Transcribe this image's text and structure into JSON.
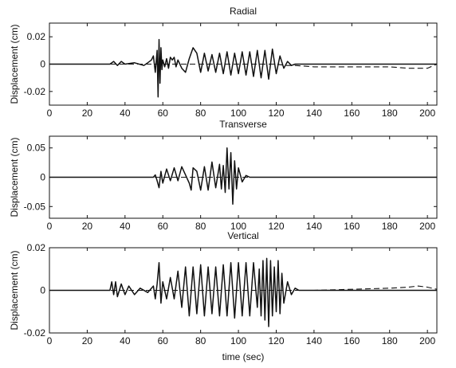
{
  "chart_data": [
    {
      "type": "line",
      "title": "Radial",
      "ylabel": "Displacement (cm)",
      "xlabel": "",
      "xlim": [
        0,
        205
      ],
      "ylim": [
        -0.03,
        0.03
      ],
      "x_ticks": [
        0,
        20,
        40,
        60,
        80,
        100,
        120,
        140,
        160,
        180,
        200
      ],
      "y_ticks": [
        -0.02,
        0,
        0.02
      ],
      "y_tick_labels": [
        "-0.02",
        "0",
        "0.02"
      ],
      "grid": false,
      "series": [
        {
          "style": "solid",
          "x": [
            0,
            32,
            34,
            36,
            38,
            40,
            45,
            50,
            52,
            54,
            55,
            56,
            57,
            57.5,
            58,
            58.5,
            59,
            59.5,
            60,
            61,
            62,
            63,
            64,
            65,
            66,
            67,
            68,
            70,
            72,
            74,
            76,
            78,
            80,
            82,
            84,
            86,
            88,
            90,
            92,
            94,
            96,
            98,
            100,
            102,
            104,
            106,
            108,
            110,
            112,
            114,
            116,
            118,
            120,
            122,
            124,
            126,
            128,
            130,
            205
          ],
          "y": [
            0,
            0,
            0.002,
            -0.001,
            0.002,
            0,
            0.001,
            -0.001,
            0.001,
            0.003,
            0.006,
            -0.006,
            0.01,
            -0.024,
            0.018,
            -0.014,
            0.012,
            -0.004,
            0.003,
            -0.002,
            0.004,
            -0.003,
            0.005,
            0.003,
            0.005,
            -0.002,
            0.003,
            -0.003,
            -0.006,
            0.004,
            0.012,
            0.008,
            -0.006,
            0.008,
            -0.005,
            0.007,
            -0.006,
            0.008,
            -0.007,
            0.009,
            -0.008,
            0.008,
            -0.007,
            0.009,
            -0.008,
            0.009,
            -0.009,
            0.01,
            -0.01,
            0.01,
            -0.011,
            0.011,
            -0.007,
            0.006,
            -0.003,
            0.002,
            -0.001,
            0,
            0
          ]
        },
        {
          "style": "dashed",
          "x": [
            0,
            120,
            125,
            130,
            140,
            160,
            180,
            190,
            195,
            200,
            205
          ],
          "y": [
            0,
            0,
            -0.001,
            -0.001,
            -0.002,
            -0.002,
            -0.002,
            -0.003,
            -0.003,
            -0.003,
            0
          ]
        }
      ]
    },
    {
      "type": "line",
      "title": "Transverse",
      "ylabel": "Displacement (cm)",
      "xlabel": "",
      "xlim": [
        0,
        205
      ],
      "ylim": [
        -0.07,
        0.07
      ],
      "x_ticks": [
        0,
        20,
        40,
        60,
        80,
        100,
        120,
        140,
        160,
        180,
        200
      ],
      "y_ticks": [
        -0.05,
        0,
        0.05
      ],
      "y_tick_labels": [
        "-0.05",
        "0",
        "0.05"
      ],
      "grid": false,
      "series": [
        {
          "style": "solid",
          "x": [
            0,
            55,
            56,
            57,
            58,
            59,
            60,
            62,
            64,
            66,
            68,
            70,
            72,
            74,
            75,
            76,
            78,
            80,
            82,
            84,
            86,
            88,
            90,
            91,
            92,
            93,
            94,
            95,
            96,
            97,
            98,
            99,
            100,
            102,
            104,
            106,
            205
          ],
          "y": [
            0,
            0,
            0.004,
            -0.006,
            -0.018,
            0.01,
            -0.01,
            0.014,
            -0.006,
            0.016,
            -0.006,
            0.018,
            0.004,
            -0.01,
            -0.022,
            0.016,
            0.01,
            -0.022,
            0.018,
            -0.022,
            0.026,
            -0.018,
            0.022,
            -0.02,
            0.02,
            -0.026,
            0.05,
            -0.02,
            0.042,
            -0.046,
            0.028,
            -0.02,
            0.016,
            -0.008,
            0.003,
            0,
            0
          ]
        },
        {
          "style": "dashed",
          "x": [
            0,
            100,
            205
          ],
          "y": [
            0,
            0,
            0
          ]
        }
      ]
    },
    {
      "type": "line",
      "title": "Vertical",
      "ylabel": "Displacement (cm)",
      "xlabel": "time (sec)",
      "xlim": [
        0,
        205
      ],
      "ylim": [
        -0.02,
        0.02
      ],
      "x_ticks": [
        0,
        20,
        40,
        60,
        80,
        100,
        120,
        140,
        160,
        180,
        200
      ],
      "y_ticks": [
        -0.02,
        0,
        0.02
      ],
      "y_tick_labels": [
        "-0.02",
        "0",
        "0.02"
      ],
      "grid": false,
      "series": [
        {
          "style": "solid",
          "x": [
            0,
            32,
            33,
            34,
            35,
            36,
            38,
            40,
            42,
            45,
            48,
            52,
            55,
            56,
            57,
            58,
            59,
            60,
            62,
            64,
            66,
            68,
            70,
            72,
            74,
            76,
            78,
            80,
            82,
            84,
            86,
            88,
            90,
            92,
            94,
            96,
            98,
            100,
            102,
            104,
            106,
            108,
            110,
            111,
            112,
            113,
            114,
            115,
            116,
            117,
            118,
            119,
            120,
            121,
            122,
            123,
            124,
            126,
            128,
            130,
            132,
            205
          ],
          "y": [
            0,
            0,
            0.004,
            -0.002,
            0.004,
            -0.003,
            0.003,
            -0.002,
            0.002,
            -0.002,
            0.001,
            -0.001,
            0.002,
            -0.004,
            0.003,
            0.013,
            -0.006,
            0.004,
            -0.004,
            0.006,
            -0.004,
            0.009,
            -0.008,
            0.011,
            -0.012,
            0.011,
            -0.011,
            0.012,
            -0.012,
            0.011,
            -0.011,
            0.011,
            -0.012,
            0.012,
            -0.012,
            0.013,
            -0.013,
            0.013,
            -0.012,
            0.013,
            -0.012,
            0.013,
            -0.008,
            0.01,
            -0.012,
            0.014,
            -0.014,
            0.015,
            -0.017,
            0.014,
            -0.012,
            0.011,
            -0.01,
            0.014,
            -0.011,
            0.008,
            -0.006,
            0.004,
            -0.002,
            0.001,
            0,
            0
          ]
        },
        {
          "style": "dashed",
          "x": [
            0,
            130,
            140,
            160,
            180,
            190,
            195,
            200,
            205
          ],
          "y": [
            0,
            0,
            0,
            0.0005,
            0.001,
            0.0015,
            0.002,
            0.0015,
            0.0005
          ]
        }
      ]
    }
  ]
}
